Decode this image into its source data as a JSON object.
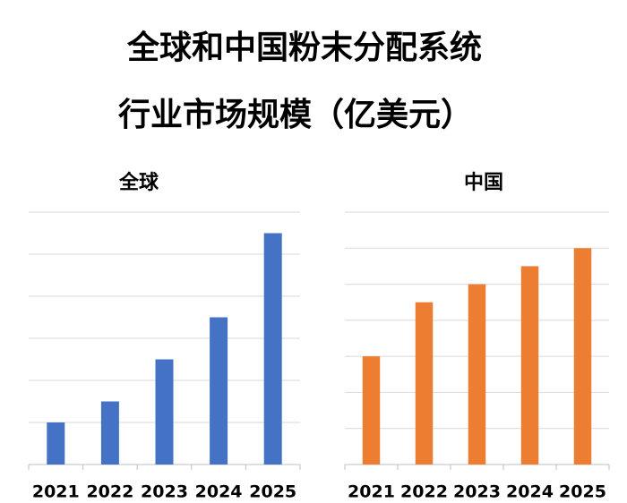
{
  "title": [
    "全球和中国粉末分配系统",
    "行业市场规模（亿美元）"
  ],
  "chart_data": [
    {
      "type": "bar",
      "title": "全球",
      "categories": [
        "2021",
        "2022",
        "2023",
        "2024",
        "2025"
      ],
      "values": [
        1,
        1.5,
        2.5,
        3.5,
        5.5
      ],
      "color": "#4472c4",
      "ylim": [
        0,
        6
      ],
      "yticks": [
        0,
        1,
        2,
        3,
        4,
        5,
        6
      ],
      "grid": true
    },
    {
      "type": "bar",
      "title": "中国",
      "categories": [
        "2021",
        "2022",
        "2023",
        "2024",
        "2025"
      ],
      "values": [
        3,
        4.5,
        5,
        5.5,
        6
      ],
      "color": "#ed7d31",
      "ylim": [
        0,
        7
      ],
      "yticks": [
        0,
        1,
        2,
        3,
        4,
        5,
        6,
        7
      ],
      "grid": true
    }
  ]
}
